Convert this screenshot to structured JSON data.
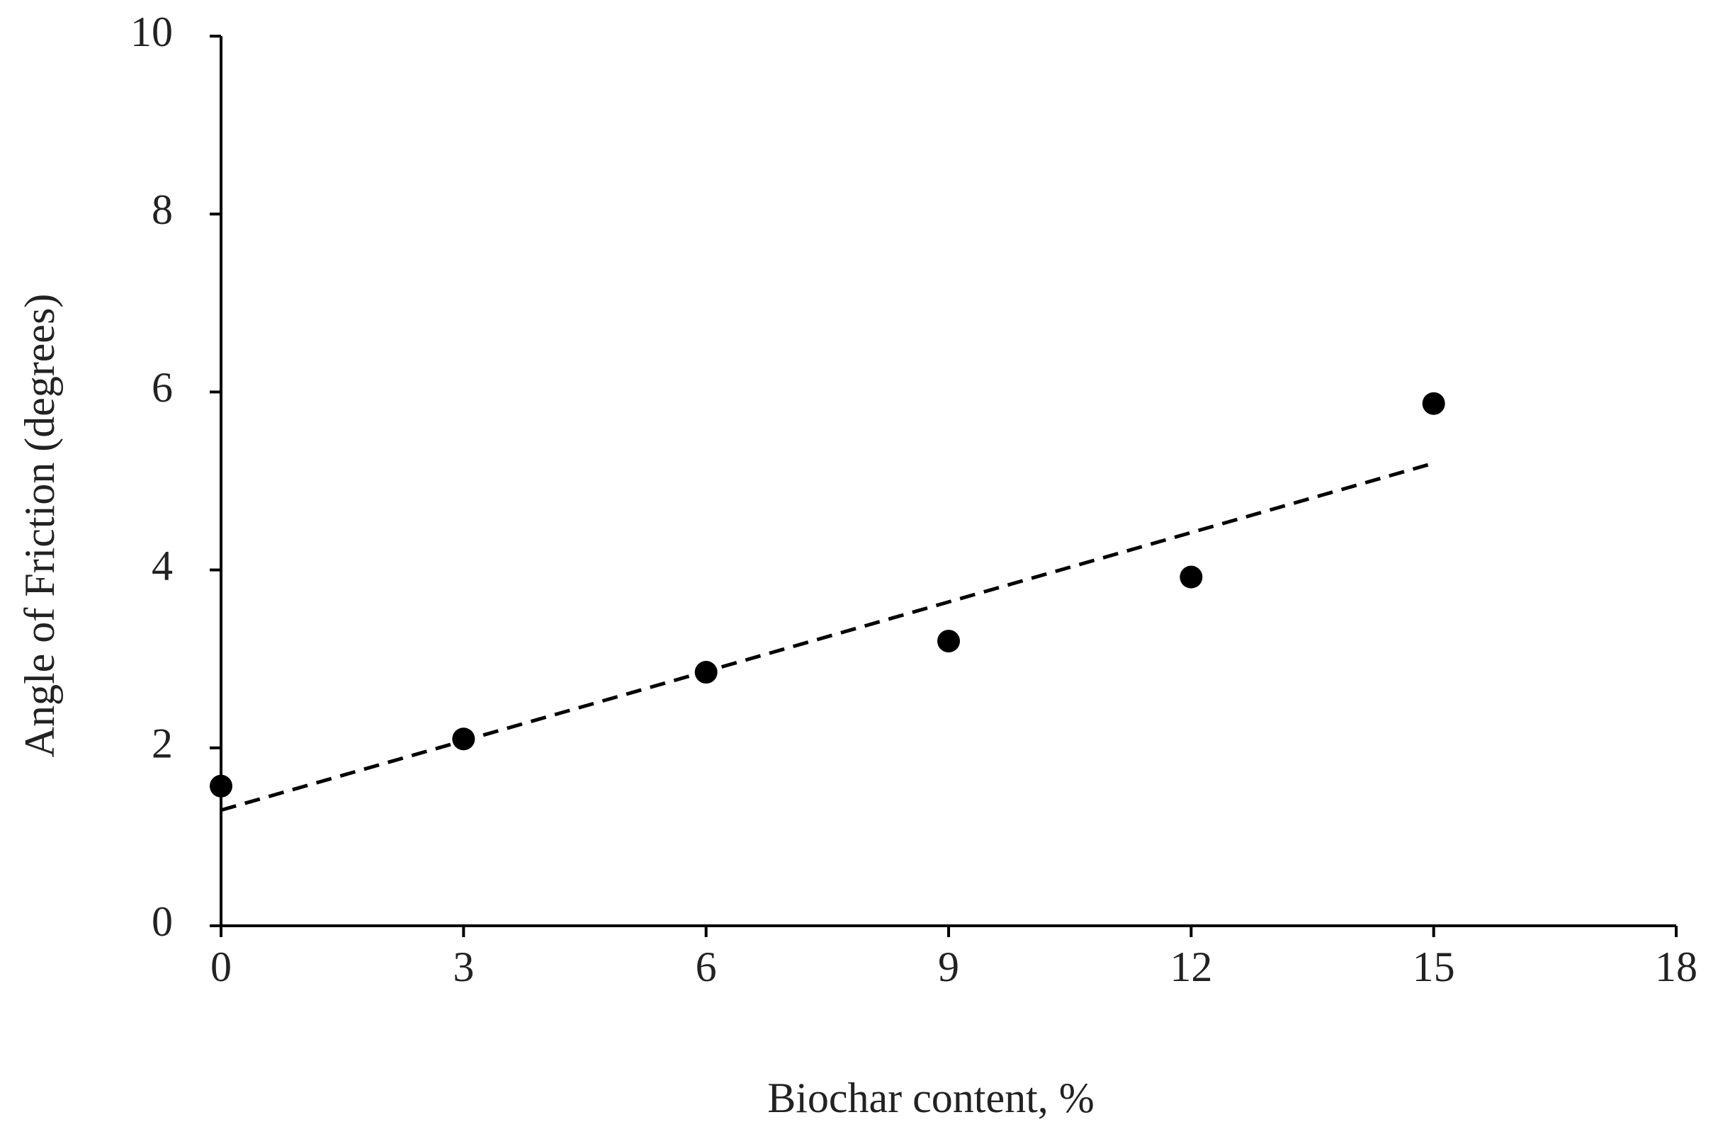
{
  "chart_data": {
    "type": "scatter",
    "x_label": "Biochar content, %",
    "y_label": "Angle of Friction (degrees)",
    "x": [
      0,
      3,
      6,
      9,
      12,
      15
    ],
    "values": [
      1.57,
      2.1,
      2.85,
      3.2,
      3.92,
      5.87
    ],
    "color": "#000000",
    "trendline": {
      "x": [
        0,
        15
      ],
      "values": [
        1.3,
        5.2
      ],
      "dash": true
    },
    "xlim": [
      0,
      18
    ],
    "xticks": [
      0,
      3,
      6,
      9,
      12,
      15,
      18
    ],
    "ylim": [
      0,
      10
    ],
    "yticks": [
      0,
      2,
      4,
      6,
      8,
      10
    ],
    "grid": false
  }
}
